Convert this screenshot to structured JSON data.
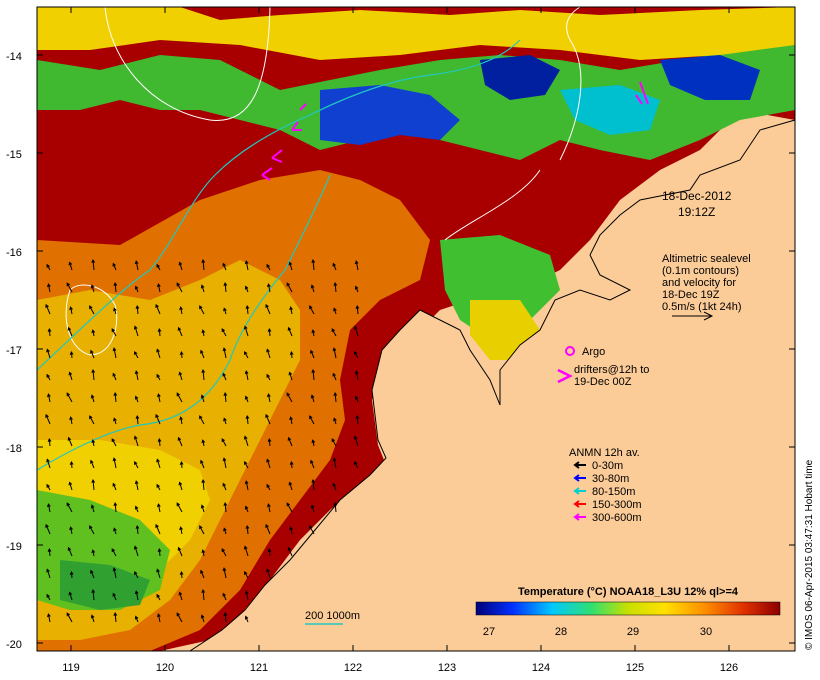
{
  "map": {
    "date": "18-Dec-2012",
    "time": "19:12Z",
    "altimetry": {
      "lines": [
        "Altimetric sealevel",
        "(0.1m contours)",
        "and velocity for",
        "18-Dec 19Z",
        "0.5m/s (1kt 24h)"
      ]
    },
    "argo_label": "Argo",
    "drifters": {
      "line1": "drifters@12h to",
      "line2": "19-Dec 00Z"
    },
    "anmn": {
      "title": "ANMN 12h av.",
      "items": [
        {
          "label": "0-30m",
          "color": "#000000"
        },
        {
          "label": "30-80m",
          "color": "#0000ff"
        },
        {
          "label": "80-150m",
          "color": "#00d0d0"
        },
        {
          "label": "150-300m",
          "color": "#ff0000"
        },
        {
          "label": "300-600m",
          "color": "#ff00ff"
        }
      ]
    },
    "isobath_label": "200  1000m",
    "colorbar": {
      "title": "Temperature (°C) NOAA18_L3U 12% ql>=4",
      "ticks": [
        "27",
        "28",
        "29",
        "30"
      ]
    },
    "credit": "© IMOS 06-Apr-2015 03:47:31 Hobart time",
    "x_ticks": [
      "119",
      "120",
      "121",
      "122",
      "123",
      "124",
      "125",
      "126"
    ],
    "y_ticks": [
      "-14",
      "-15",
      "-16",
      "-17",
      "-18",
      "-19",
      "-20"
    ],
    "colors": {
      "land": "#fccc98",
      "hot": "#a80000",
      "orange": "#e87000",
      "yellow": "#f0d000",
      "green": "#40c020",
      "cyan": "#00c0c0",
      "blue": "#0030c0"
    }
  }
}
